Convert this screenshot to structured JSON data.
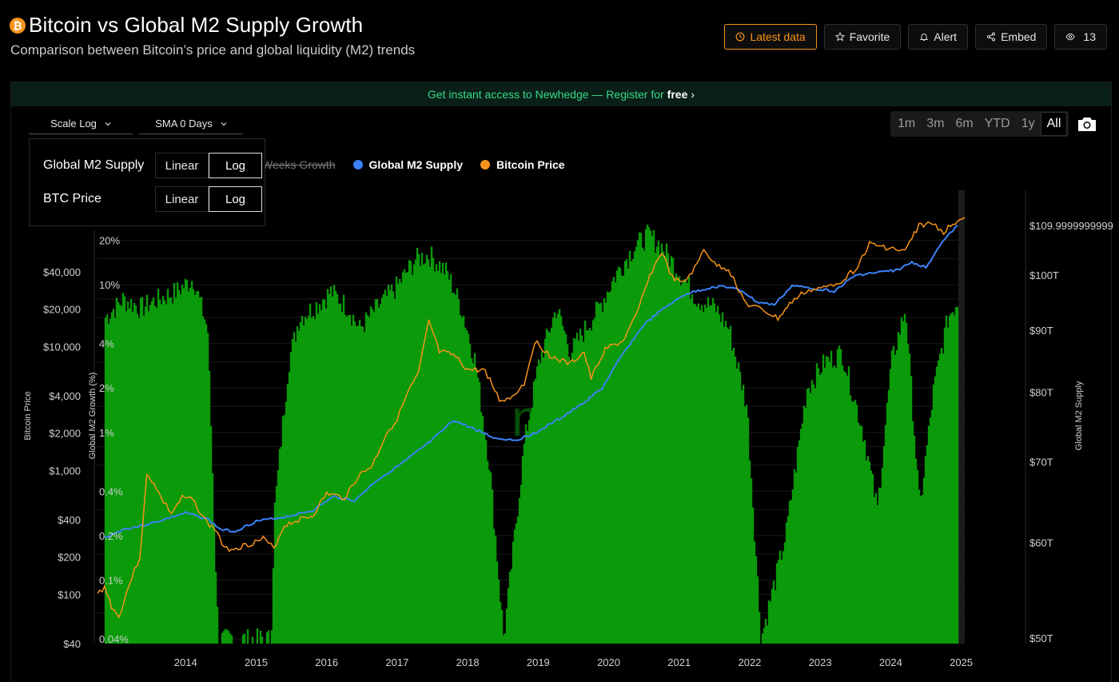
{
  "header": {
    "title": "Bitcoin vs Global M2 Supply Growth",
    "subtitle": "Comparison between Bitcoin’s price and global liquidity (M2) trends",
    "badge_glyph": "₿",
    "actions": [
      {
        "label": "Latest data",
        "icon": "clock-icon",
        "primary": true
      },
      {
        "label": "Favorite",
        "icon": "star-icon"
      },
      {
        "label": "Alert",
        "icon": "bell-icon"
      },
      {
        "label": "Embed",
        "icon": "share-icon"
      },
      {
        "label": "13",
        "icon": "eye-icon"
      }
    ]
  },
  "banner": {
    "text": "Get instant access to Newhedge — Register for",
    "bold": "free",
    "chevron": "›"
  },
  "controls": {
    "scale_label": "Scale Log",
    "sma_label": "SMA 0 Days",
    "ranges": [
      "1m",
      "3m",
      "6m",
      "YTD",
      "1y",
      "All"
    ],
    "active_range": "All"
  },
  "scale_dropdown": {
    "rows": [
      {
        "label": "Global M2 Supply",
        "options": [
          "Linear",
          "Log"
        ],
        "selected": "Log"
      },
      {
        "label": "BTC Price",
        "options": [
          "Linear",
          "Log"
        ],
        "selected": "Log"
      }
    ]
  },
  "legend": {
    "hidden_item": "Weeks Growth",
    "items": [
      {
        "name": "Global M2 Supply",
        "color": "#3b82f6"
      },
      {
        "name": "Bitcoin Price",
        "color": "#f7931a"
      }
    ]
  },
  "watermark": "newhedge",
  "chart_data": {
    "type": "line",
    "title": "Bitcoin vs Global M2 Supply Growth",
    "x_range": [
      2013.25,
      2025.55
    ],
    "x_ticks": [
      "2014",
      "2015",
      "2016",
      "2017",
      "2018",
      "2019",
      "2020",
      "2021",
      "2022",
      "2023",
      "2024",
      "2025"
    ],
    "axes": {
      "btc": {
        "title": "Bitcoin Price",
        "scale": "log",
        "range": [
          40,
          110000
        ],
        "ticks": [
          {
            "v": 40,
            "label": "$40"
          },
          {
            "v": 100,
            "label": "$100"
          },
          {
            "v": 200,
            "label": "$200"
          },
          {
            "v": 400,
            "label": "$400"
          },
          {
            "v": 1000,
            "label": "$1,000"
          },
          {
            "v": 2000,
            "label": "$2,000"
          },
          {
            "v": 4000,
            "label": "$4,000"
          },
          {
            "v": 10000,
            "label": "$10,000"
          },
          {
            "v": 20000,
            "label": "$20,000"
          },
          {
            "v": 40000,
            "label": "$40,000"
          }
        ]
      },
      "growth": {
        "title": "Global M2 Growth (%)",
        "scale": "log",
        "range": [
          0.04,
          30
        ],
        "ticks": [
          {
            "v": 0.04,
            "label": "0.04%"
          },
          {
            "v": 0.1,
            "label": "0.1%"
          },
          {
            "v": 0.2,
            "label": "0.2%"
          },
          {
            "v": 0.4,
            "label": "0.4%"
          },
          {
            "v": 1,
            "label": "1%"
          },
          {
            "v": 2,
            "label": "2%"
          },
          {
            "v": 4,
            "label": "4%"
          },
          {
            "v": 10,
            "label": "10%"
          },
          {
            "v": 20,
            "label": "20%"
          }
        ]
      },
      "m2": {
        "title": "Global M2 Supply",
        "scale": "log",
        "range": [
          50,
          112
        ],
        "ticks": [
          {
            "v": 50,
            "label": "$50T"
          },
          {
            "v": 60,
            "label": "$60T"
          },
          {
            "v": 70,
            "label": "$70T"
          },
          {
            "v": 80,
            "label": "$80T"
          },
          {
            "v": 90,
            "label": "$90T"
          },
          {
            "v": 100,
            "label": "$100T"
          },
          {
            "v": 110,
            "label": "$109.9999999999"
          }
        ]
      }
    },
    "series": [
      {
        "name": "Global M2 Supply",
        "axis": "m2",
        "color": "#3b82f6",
        "points": [
          [
            2013.35,
            60.5
          ],
          [
            2013.6,
            61.5
          ],
          [
            2014.0,
            62.2
          ],
          [
            2014.5,
            63.5
          ],
          [
            2014.8,
            62.8
          ],
          [
            2015.0,
            61.5
          ],
          [
            2015.2,
            61.3
          ],
          [
            2015.5,
            62.5
          ],
          [
            2015.9,
            63.0
          ],
          [
            2016.3,
            63.8
          ],
          [
            2016.6,
            65.5
          ],
          [
            2016.9,
            65.0
          ],
          [
            2017.2,
            67.5
          ],
          [
            2017.6,
            70.0
          ],
          [
            2018.0,
            73.0
          ],
          [
            2018.3,
            75.8
          ],
          [
            2018.6,
            74.5
          ],
          [
            2018.9,
            73.2
          ],
          [
            2019.2,
            73.0
          ],
          [
            2019.5,
            74.2
          ],
          [
            2019.8,
            76.0
          ],
          [
            2020.1,
            78.0
          ],
          [
            2020.4,
            80.5
          ],
          [
            2020.7,
            86.0
          ],
          [
            2021.0,
            91.0
          ],
          [
            2021.3,
            94.0
          ],
          [
            2021.6,
            96.5
          ],
          [
            2021.9,
            97.5
          ],
          [
            2022.1,
            98.0
          ],
          [
            2022.4,
            97.0
          ],
          [
            2022.6,
            95.0
          ],
          [
            2022.85,
            94.5
          ],
          [
            2023.1,
            98.0
          ],
          [
            2023.4,
            97.5
          ],
          [
            2023.7,
            97.0
          ],
          [
            2024.0,
            100.0
          ],
          [
            2024.3,
            100.5
          ],
          [
            2024.6,
            101.0
          ],
          [
            2024.8,
            102.5
          ],
          [
            2025.0,
            101.5
          ],
          [
            2025.2,
            106.0
          ],
          [
            2025.45,
            110.0
          ]
        ]
      },
      {
        "name": "Bitcoin Price",
        "axis": "btc",
        "color": "#f7931a",
        "points": [
          [
            2013.25,
            100
          ],
          [
            2013.35,
            115
          ],
          [
            2013.45,
            80
          ],
          [
            2013.55,
            65
          ],
          [
            2013.7,
            120
          ],
          [
            2013.85,
            200
          ],
          [
            2013.95,
            900
          ],
          [
            2014.05,
            800
          ],
          [
            2014.15,
            600
          ],
          [
            2014.3,
            450
          ],
          [
            2014.45,
            600
          ],
          [
            2014.6,
            580
          ],
          [
            2014.8,
            380
          ],
          [
            2014.95,
            320
          ],
          [
            2015.05,
            230
          ],
          [
            2015.25,
            240
          ],
          [
            2015.45,
            260
          ],
          [
            2015.6,
            280
          ],
          [
            2015.75,
            235
          ],
          [
            2015.9,
            360
          ],
          [
            2016.1,
            400
          ],
          [
            2016.3,
            430
          ],
          [
            2016.5,
            650
          ],
          [
            2016.75,
            600
          ],
          [
            2016.95,
            900
          ],
          [
            2017.15,
            1100
          ],
          [
            2017.35,
            2000
          ],
          [
            2017.5,
            2600
          ],
          [
            2017.65,
            4200
          ],
          [
            2017.8,
            6000
          ],
          [
            2017.95,
            16000
          ],
          [
            2018.1,
            9000
          ],
          [
            2018.3,
            8500
          ],
          [
            2018.5,
            6500
          ],
          [
            2018.75,
            6400
          ],
          [
            2018.95,
            3700
          ],
          [
            2019.1,
            3800
          ],
          [
            2019.3,
            5000
          ],
          [
            2019.45,
            11000
          ],
          [
            2019.7,
            8200
          ],
          [
            2019.95,
            7200
          ],
          [
            2020.15,
            9000
          ],
          [
            2020.25,
            5500
          ],
          [
            2020.45,
            9500
          ],
          [
            2020.7,
            11000
          ],
          [
            2020.9,
            18000
          ],
          [
            2021.05,
            34000
          ],
          [
            2021.25,
            58000
          ],
          [
            2021.4,
            36000
          ],
          [
            2021.55,
            32000
          ],
          [
            2021.75,
            45000
          ],
          [
            2021.85,
            62000
          ],
          [
            2022.0,
            46000
          ],
          [
            2022.2,
            42000
          ],
          [
            2022.45,
            22000
          ],
          [
            2022.7,
            19500
          ],
          [
            2022.9,
            16800
          ],
          [
            2023.1,
            23000
          ],
          [
            2023.3,
            28000
          ],
          [
            2023.55,
            29500
          ],
          [
            2023.8,
            34000
          ],
          [
            2024.0,
            42000
          ],
          [
            2024.2,
            67000
          ],
          [
            2024.5,
            62000
          ],
          [
            2024.7,
            58000
          ],
          [
            2024.9,
            95000
          ],
          [
            2025.1,
            98000
          ],
          [
            2025.25,
            84000
          ],
          [
            2025.45,
            106000
          ],
          [
            2025.55,
            110000
          ]
        ]
      },
      {
        "name": "Global M2 Growth",
        "axis": "growth",
        "type": "bar",
        "color": "#0a9a0a",
        "points": [
          [
            2013.35,
            6
          ],
          [
            2013.6,
            8
          ],
          [
            2013.85,
            7
          ],
          [
            2014.1,
            8
          ],
          [
            2014.35,
            9
          ],
          [
            2014.6,
            11
          ],
          [
            2014.8,
            5
          ],
          [
            2014.95,
            0.04
          ],
          [
            2015.7,
            0.04
          ],
          [
            2015.75,
            0.3
          ],
          [
            2015.95,
            3
          ],
          [
            2016.1,
            6
          ],
          [
            2016.3,
            7
          ],
          [
            2016.55,
            9
          ],
          [
            2016.8,
            7
          ],
          [
            2016.95,
            5
          ],
          [
            2017.2,
            7
          ],
          [
            2017.5,
            10
          ],
          [
            2017.75,
            15
          ],
          [
            2017.95,
            16
          ],
          [
            2018.2,
            12
          ],
          [
            2018.4,
            7
          ],
          [
            2018.6,
            3
          ],
          [
            2018.8,
            0.6
          ],
          [
            2019.0,
            0.04
          ],
          [
            2019.3,
            0.9
          ],
          [
            2019.5,
            3
          ],
          [
            2019.75,
            7
          ],
          [
            2019.95,
            3.5
          ],
          [
            2020.15,
            5
          ],
          [
            2020.35,
            7
          ],
          [
            2020.6,
            12
          ],
          [
            2020.85,
            18
          ],
          [
            2021.05,
            22
          ],
          [
            2021.25,
            18
          ],
          [
            2021.5,
            12
          ],
          [
            2021.75,
            8
          ],
          [
            2022.0,
            7
          ],
          [
            2022.2,
            5
          ],
          [
            2022.45,
            1.5
          ],
          [
            2022.65,
            0.04
          ],
          [
            2023.0,
            0.2
          ],
          [
            2023.3,
            2
          ],
          [
            2023.55,
            3
          ],
          [
            2023.8,
            3.5
          ],
          [
            2024.1,
            1
          ],
          [
            2024.3,
            0.3
          ],
          [
            2024.5,
            3
          ],
          [
            2024.7,
            7
          ],
          [
            2024.9,
            0.3
          ],
          [
            2025.1,
            2
          ],
          [
            2025.3,
            6
          ],
          [
            2025.45,
            8
          ]
        ]
      }
    ]
  }
}
